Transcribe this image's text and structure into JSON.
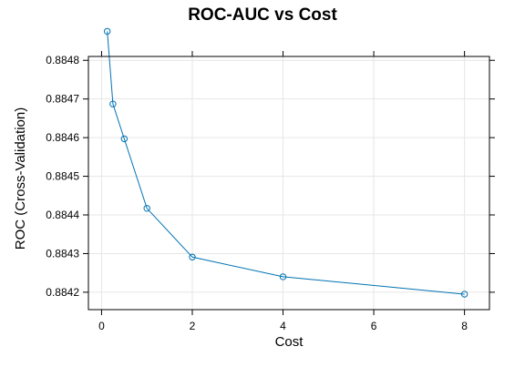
{
  "chart_data": {
    "type": "line",
    "title": "ROC-AUC vs Cost",
    "xlabel": "Cost",
    "ylabel": "ROC (Cross-Validation)",
    "x": [
      0.125,
      0.25,
      0.5,
      1,
      2,
      4,
      8
    ],
    "series": [
      {
        "values": [
          0.884875,
          0.884687,
          0.884597,
          0.884417,
          0.884291,
          0.88424,
          0.884195
        ]
      }
    ],
    "xticks": [
      "0",
      "2",
      "4",
      "6",
      "8"
    ],
    "yticks": [
      "0.8842",
      "0.8843",
      "0.8844",
      "0.8845",
      "0.8846",
      "0.8847",
      "0.8848"
    ],
    "xlim": [
      -0.29,
      8.55
    ],
    "ylim": [
      0.884155,
      0.88481
    ],
    "grid": true,
    "colors": {
      "series": "#0072b2",
      "grid": "#e6e6e6",
      "frame": "#000000"
    }
  }
}
